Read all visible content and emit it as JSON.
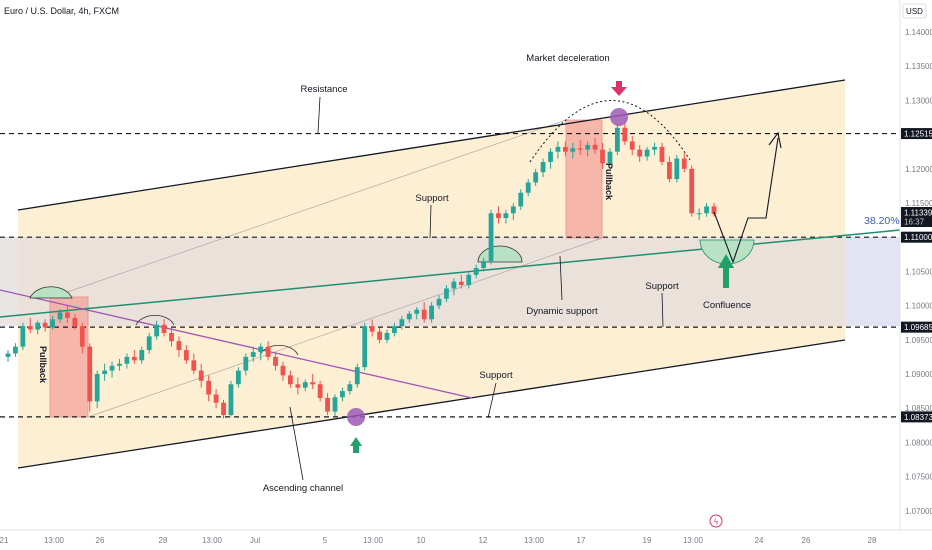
{
  "header": {
    "title": "Euro / U.S. Dollar, 4h, FXCM",
    "currency": "USD"
  },
  "chart_data": {
    "type": "candlestick",
    "symbol": "Euro / U.S. Dollar",
    "timeframe": "4h",
    "source": "FXCM",
    "currency": "USD",
    "y_ticks": [
      "1.14000",
      "1.13500",
      "1.13000",
      "1.12500",
      "1.12000",
      "1.11500",
      "1.11000",
      "1.10500",
      "1.10000",
      "1.09500",
      "1.09000",
      "1.08500",
      "1.08000",
      "1.07500",
      "1.07000"
    ],
    "ylim": [
      1.0665,
      1.1423
    ],
    "x_ticks": [
      "21",
      "13:00",
      "26",
      "28",
      "13:00",
      "Jul",
      "5",
      "13:00",
      "10",
      "12",
      "13:00",
      "17",
      "19",
      "13:00",
      "24",
      "26",
      "28"
    ],
    "price_tags": [
      {
        "label": "1.12515",
        "value": 1.12515
      },
      {
        "label": "1.11339",
        "value": 1.11339,
        "sub": "16:37",
        "current": true
      },
      {
        "label": "1.11000",
        "value": 1.11
      },
      {
        "label": "1.09685",
        "value": 1.09685
      },
      {
        "label": "1.08373",
        "value": 1.08373
      }
    ],
    "horizontal_levels": [
      1.12515,
      1.11,
      1.09685,
      1.08373
    ],
    "fib_label": "38.20%",
    "candles_ohlc_approx": [
      [
        1.0925,
        1.0935,
        1.0918,
        1.093
      ],
      [
        1.093,
        1.0945,
        1.0925,
        1.094
      ],
      [
        1.094,
        1.0975,
        1.0935,
        1.097
      ],
      [
        1.097,
        1.0982,
        1.096,
        1.0965
      ],
      [
        1.0965,
        1.0978,
        1.0958,
        1.0975
      ],
      [
        1.0975,
        1.098,
        1.0962,
        1.0968
      ],
      [
        1.0968,
        1.0985,
        1.0965,
        1.098
      ],
      [
        1.098,
        1.0995,
        1.0975,
        1.099
      ],
      [
        1.099,
        1.1,
        1.0975,
        1.0982
      ],
      [
        1.0982,
        1.0988,
        1.0965,
        1.097
      ],
      [
        1.097,
        1.0975,
        1.093,
        1.094
      ],
      [
        1.094,
        1.0945,
        1.0845,
        1.086
      ],
      [
        1.086,
        1.0905,
        1.085,
        1.09
      ],
      [
        1.09,
        1.0915,
        1.089,
        1.0905
      ],
      [
        1.0905,
        1.0918,
        1.0895,
        1.0912
      ],
      [
        1.0912,
        1.0922,
        1.0905,
        1.0915
      ],
      [
        1.0915,
        1.093,
        1.0908,
        1.0925
      ],
      [
        1.0925,
        1.0935,
        1.0915,
        1.092
      ],
      [
        1.092,
        1.094,
        1.0915,
        1.0935
      ],
      [
        1.0935,
        1.096,
        1.093,
        1.0955
      ],
      [
        1.0955,
        1.0978,
        1.095,
        1.0972
      ],
      [
        1.0972,
        1.098,
        1.0955,
        1.096
      ],
      [
        1.096,
        1.0968,
        1.094,
        1.0948
      ],
      [
        1.0948,
        1.0955,
        1.0925,
        1.0935
      ],
      [
        1.0935,
        1.0942,
        1.0915,
        1.092
      ],
      [
        1.092,
        1.093,
        1.09,
        1.0905
      ],
      [
        1.0905,
        1.0915,
        1.088,
        1.089
      ],
      [
        1.089,
        1.0898,
        1.086,
        1.087
      ],
      [
        1.087,
        1.0878,
        1.085,
        1.0858
      ],
      [
        1.0858,
        1.0862,
        1.0835,
        1.084
      ],
      [
        1.084,
        1.089,
        1.0838,
        1.0885
      ],
      [
        1.0885,
        1.091,
        1.088,
        1.0905
      ],
      [
        1.0905,
        1.093,
        1.0898,
        1.0925
      ],
      [
        1.0925,
        1.094,
        1.0918,
        1.0932
      ],
      [
        1.0932,
        1.0945,
        1.092,
        1.094
      ],
      [
        1.094,
        1.0948,
        1.092,
        1.0925
      ],
      [
        1.0925,
        1.0932,
        1.0905,
        1.0912
      ],
      [
        1.0912,
        1.0918,
        1.089,
        1.0898
      ],
      [
        1.0898,
        1.0905,
        1.088,
        1.0885
      ],
      [
        1.0885,
        1.0895,
        1.087,
        1.088
      ],
      [
        1.088,
        1.0892,
        1.0875,
        1.0888
      ],
      [
        1.0888,
        1.09,
        1.0878,
        1.0885
      ],
      [
        1.0885,
        1.089,
        1.086,
        1.0865
      ],
      [
        1.0865,
        1.0872,
        1.084,
        1.0845
      ],
      [
        1.0845,
        1.087,
        1.0838,
        1.0866
      ],
      [
        1.0866,
        1.088,
        1.086,
        1.0875
      ],
      [
        1.0875,
        1.089,
        1.087,
        1.0885
      ],
      [
        1.0885,
        1.0915,
        1.088,
        1.091
      ],
      [
        1.091,
        1.0975,
        1.0905,
        1.097
      ],
      [
        1.097,
        1.098,
        1.0955,
        1.0962
      ],
      [
        1.0962,
        1.0968,
        1.0945,
        1.095
      ],
      [
        1.095,
        1.0965,
        1.0945,
        1.096
      ],
      [
        1.096,
        1.0975,
        1.0955,
        1.097
      ],
      [
        1.097,
        1.0985,
        1.0965,
        1.098
      ],
      [
        1.098,
        1.0992,
        1.0975,
        1.0988
      ],
      [
        1.0988,
        1.0998,
        1.098,
        1.0994
      ],
      [
        1.0994,
        1.1005,
        1.0975,
        1.098
      ],
      [
        1.098,
        1.1005,
        1.0975,
        1.1
      ],
      [
        1.1,
        1.1015,
        1.0995,
        1.101
      ],
      [
        1.101,
        1.103,
        1.1005,
        1.1025
      ],
      [
        1.1025,
        1.104,
        1.1015,
        1.1035
      ],
      [
        1.1035,
        1.1045,
        1.1025,
        1.103
      ],
      [
        1.103,
        1.1048,
        1.1025,
        1.1045
      ],
      [
        1.1045,
        1.106,
        1.104,
        1.1055
      ],
      [
        1.1055,
        1.107,
        1.105,
        1.1065
      ],
      [
        1.1065,
        1.114,
        1.106,
        1.1135
      ],
      [
        1.1135,
        1.1145,
        1.112,
        1.1128
      ],
      [
        1.1128,
        1.114,
        1.112,
        1.1135
      ],
      [
        1.1135,
        1.115,
        1.1125,
        1.1145
      ],
      [
        1.1145,
        1.117,
        1.114,
        1.1165
      ],
      [
        1.1165,
        1.1185,
        1.116,
        1.118
      ],
      [
        1.118,
        1.12,
        1.1175,
        1.1195
      ],
      [
        1.1195,
        1.1215,
        1.1188,
        1.121
      ],
      [
        1.121,
        1.123,
        1.12,
        1.1225
      ],
      [
        1.1225,
        1.124,
        1.1215,
        1.1232
      ],
      [
        1.1232,
        1.124,
        1.1218,
        1.1225
      ],
      [
        1.1225,
        1.1238,
        1.1215,
        1.123
      ],
      [
        1.123,
        1.1242,
        1.122,
        1.1228
      ],
      [
        1.1228,
        1.124,
        1.1218,
        1.1235
      ],
      [
        1.1235,
        1.1245,
        1.1222,
        1.1228
      ],
      [
        1.1228,
        1.1238,
        1.12,
        1.1208
      ],
      [
        1.1208,
        1.123,
        1.1205,
        1.1225
      ],
      [
        1.1225,
        1.1265,
        1.122,
        1.126
      ],
      [
        1.126,
        1.1268,
        1.1235,
        1.124
      ],
      [
        1.124,
        1.1248,
        1.122,
        1.1228
      ],
      [
        1.1228,
        1.1235,
        1.121,
        1.1218
      ],
      [
        1.1218,
        1.1232,
        1.1212,
        1.1228
      ],
      [
        1.1228,
        1.1238,
        1.122,
        1.1232
      ],
      [
        1.1232,
        1.1238,
        1.1205,
        1.121
      ],
      [
        1.121,
        1.1218,
        1.118,
        1.1185
      ],
      [
        1.1185,
        1.122,
        1.118,
        1.1215
      ],
      [
        1.1215,
        1.1225,
        1.1195,
        1.12
      ],
      [
        1.12,
        1.1205,
        1.113,
        1.1135
      ],
      [
        1.1135,
        1.1142,
        1.1125,
        1.1135
      ],
      [
        1.1135,
        1.115,
        1.113,
        1.1145
      ],
      [
        1.1145,
        1.115,
        1.113,
        1.1134
      ]
    ]
  },
  "annotations": {
    "market_deceleration": "Market deceleration",
    "resistance": "Resistance",
    "support_top": "Support",
    "pullback_right": "Pullback",
    "pullback_left": "Pullback",
    "dynamic_support": "Dynamic support",
    "support_mid": "Support",
    "confluence": "Confluence",
    "support_bottom": "Support",
    "ascending_channel": "Ascending channel"
  },
  "colors": {
    "bull": "#26a69a",
    "bear": "#ef5350",
    "channel_fill": "#fdeccd",
    "range_fill": "#e3dfe3",
    "green_line": "#1f8f6e",
    "purple_line": "#a056b5",
    "marker": "#9c5bb5",
    "arrow_green": "#22a06b",
    "arrow_pink": "#e0316f"
  }
}
